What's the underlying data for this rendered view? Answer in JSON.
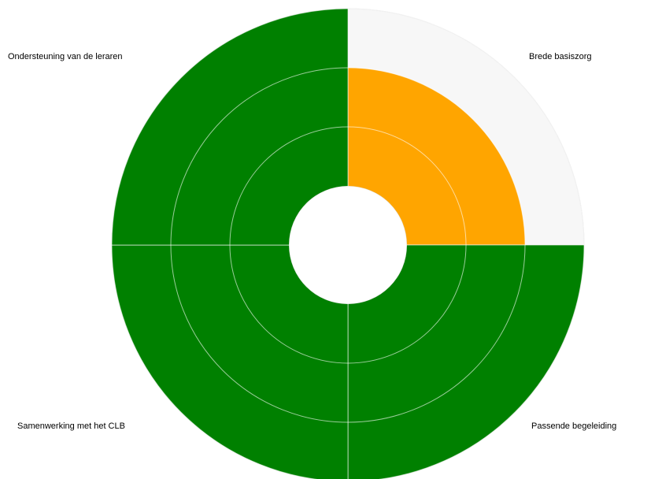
{
  "chart_data": {
    "type": "polarArea",
    "categories": [
      "Brede basiszorg",
      "Passende begeleiding",
      "Samenwerking met het CLB",
      "Ondersteuning van de leraren"
    ],
    "values": [
      2,
      3,
      3,
      3
    ],
    "colors": [
      "#ffa500",
      "#008000",
      "#008000",
      "#008000"
    ],
    "empty_color": "#f7f7f7",
    "rlim": [
      0,
      3
    ],
    "rticks": [
      1,
      2,
      3
    ],
    "grid": true
  }
}
